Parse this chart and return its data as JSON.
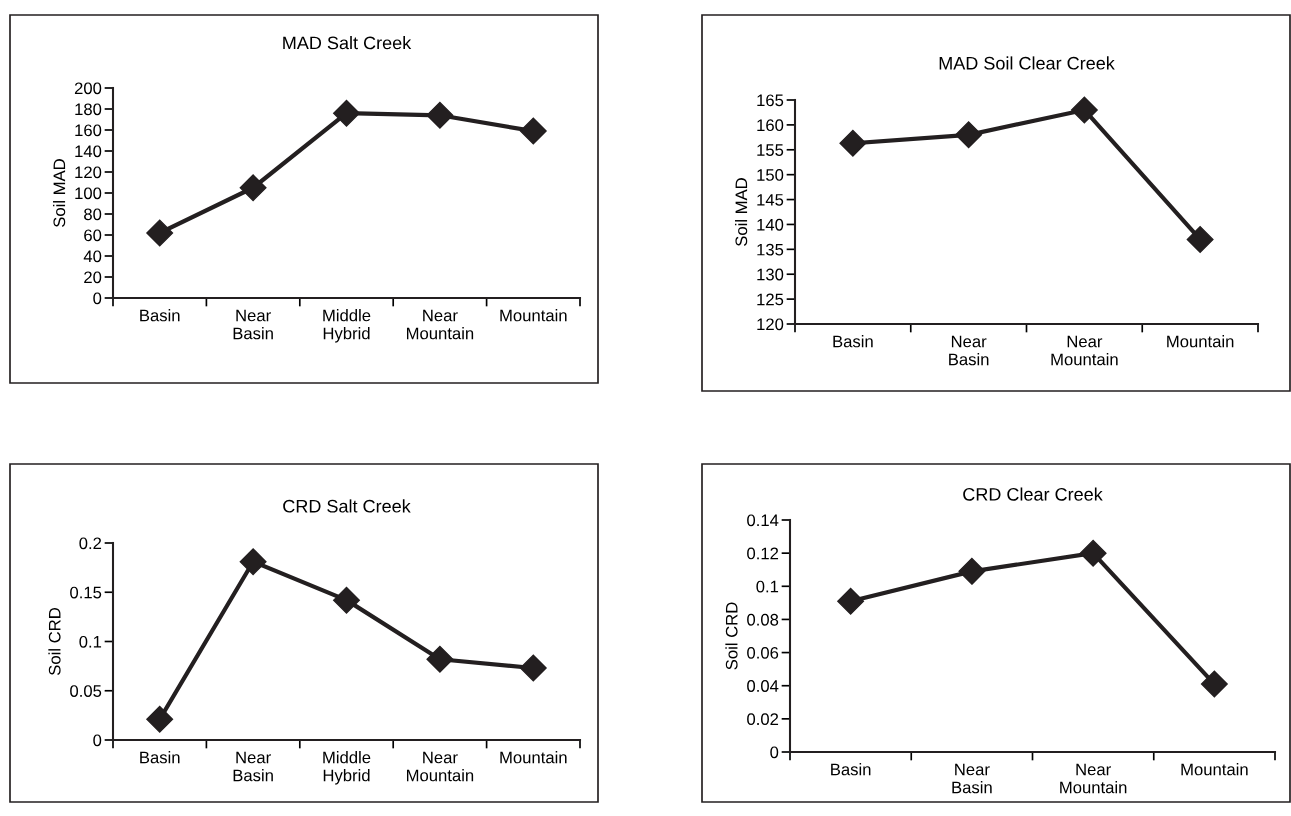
{
  "chart_data": [
    {
      "type": "line",
      "title": "MAD Salt Creek",
      "ylabel": "Soil MAD",
      "categories": [
        "Basin",
        "Near\nBasin",
        "Middle\nHybrid",
        "Near\nMountain",
        "Mountain"
      ],
      "series": [
        {
          "color": "#231f20",
          "values": [
            62,
            105,
            176,
            174,
            159
          ]
        }
      ],
      "ylim": [
        0,
        200
      ],
      "yticks": [
        0,
        20,
        40,
        60,
        80,
        100,
        120,
        140,
        160,
        180,
        200
      ],
      "marker": "diamond",
      "line_style": "solid",
      "grid": false,
      "legend": false
    },
    {
      "type": "line",
      "title": "MAD Soil Clear Creek",
      "ylabel": "Soil MAD",
      "categories": [
        "Basin",
        "Near\nBasin",
        "Near\nMountain",
        "Mountain"
      ],
      "series": [
        {
          "color": "#231f20",
          "values": [
            156.3,
            158,
            163,
            137
          ]
        }
      ],
      "ylim": [
        120,
        165
      ],
      "yticks": [
        120,
        125,
        130,
        135,
        140,
        145,
        150,
        155,
        160,
        165
      ],
      "marker": "diamond",
      "line_style": "solid",
      "grid": false,
      "legend": false
    },
    {
      "type": "line",
      "title": "CRD Salt Creek",
      "ylabel": "Soil CRD",
      "categories": [
        "Basin",
        "Near\nBasin",
        "Middle\nHybrid",
        "Near\nMountain",
        "Mountain"
      ],
      "series": [
        {
          "color": "#231f20",
          "values": [
            0.021,
            0.181,
            0.142,
            0.082,
            0.073
          ]
        }
      ],
      "ylim": [
        0,
        0.2
      ],
      "yticks": [
        0,
        0.05,
        0.1,
        0.15,
        0.2
      ],
      "marker": "diamond",
      "line_style": "solid",
      "grid": false,
      "legend": false
    },
    {
      "type": "line",
      "title": "CRD Clear Creek",
      "ylabel": "Soil CRD",
      "categories": [
        "Basin",
        "Near\nBasin",
        "Near\nMountain",
        "Mountain"
      ],
      "series": [
        {
          "color": "#231f20",
          "values": [
            0.091,
            0.109,
            0.12,
            0.041
          ]
        }
      ],
      "ylim": [
        0,
        0.14
      ],
      "yticks": [
        0,
        0.02,
        0.04,
        0.06,
        0.08,
        0.1,
        0.12,
        0.14
      ],
      "marker": "diamond",
      "line_style": "solid",
      "grid": false,
      "legend": false
    }
  ]
}
